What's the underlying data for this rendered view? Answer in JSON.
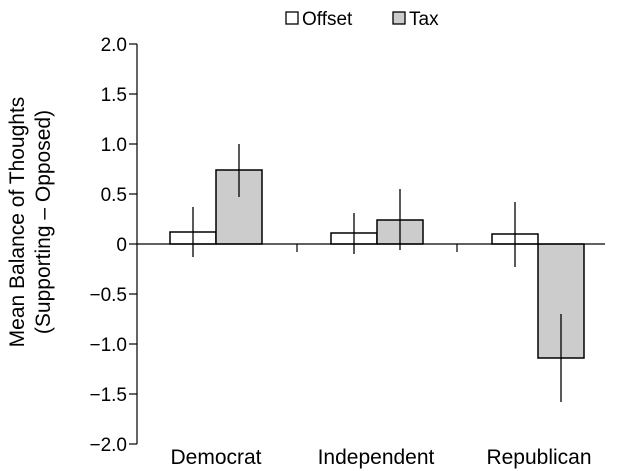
{
  "chart_data": {
    "type": "bar",
    "categories": [
      "Democrat",
      "Independent",
      "Republican"
    ],
    "series": [
      {
        "name": "Offset",
        "values": [
          0.12,
          0.11,
          0.1
        ],
        "error_low": [
          -0.13,
          -0.1,
          -0.23
        ],
        "error_high": [
          0.37,
          0.31,
          0.42
        ],
        "color": "#ffffff"
      },
      {
        "name": "Tax",
        "values": [
          0.74,
          0.24,
          -1.14
        ],
        "error_low": [
          0.47,
          -0.06,
          -1.58
        ],
        "error_high": [
          1.0,
          0.55,
          -0.7
        ],
        "color": "#cccccc"
      }
    ],
    "title": "",
    "xlabel": "",
    "ylabel_lines": [
      "Mean Balance of Thoughts",
      "(Supporting – Opposed)"
    ],
    "ylim": [
      -2.0,
      2.0
    ],
    "yticks": [
      2.0,
      1.5,
      1.0,
      0.5,
      0,
      -0.5,
      -1.0,
      -1.5,
      -2.0
    ],
    "ytick_labels": [
      "2.0",
      "1.5",
      "1.0",
      "0.5",
      "0",
      "−0.5",
      "−1.0",
      "−1.5",
      "−2.0"
    ],
    "legend_position": "top",
    "grid": false
  }
}
